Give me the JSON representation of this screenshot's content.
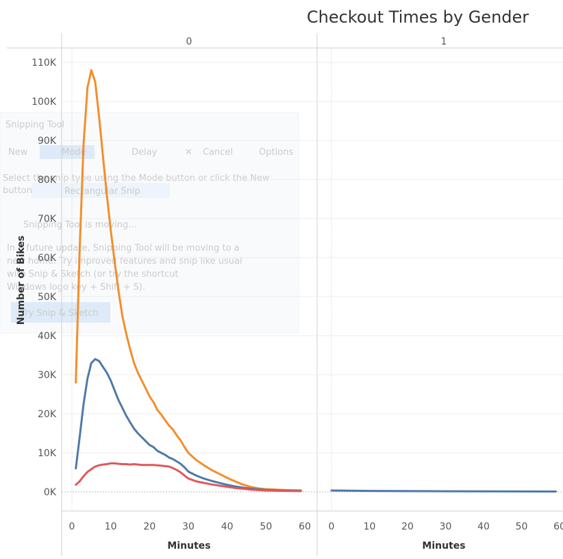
{
  "chart_data": {
    "type": "line",
    "title": "Checkout Times by Gender",
    "xlabel": "Minutes",
    "ylabel": "Number of Bikes",
    "ylim": [
      0,
      110000
    ],
    "xlim": [
      0,
      60
    ],
    "grid": true,
    "y_ticks": [
      "0K",
      "10K",
      "20K",
      "30K",
      "40K",
      "50K",
      "60K",
      "70K",
      "80K",
      "90K",
      "100K",
      "110K"
    ],
    "x_ticks": [
      "0",
      "10",
      "20",
      "30",
      "40",
      "50",
      "60"
    ],
    "facets": [
      {
        "label": "0",
        "series": [
          {
            "color": "#f28e2b",
            "x": [
              1,
              2,
              3,
              4,
              5,
              6,
              7,
              8,
              9,
              10,
              11,
              12,
              13,
              14,
              15,
              16,
              17,
              18,
              19,
              20,
              21,
              22,
              23,
              24,
              25,
              26,
              27,
              28,
              29,
              30,
              32,
              34,
              36,
              38,
              40,
              42,
              44,
              46,
              48,
              50,
              55,
              59
            ],
            "y": [
              28000,
              62000,
              89000,
              103500,
              108000,
              105000,
              96000,
              86000,
              76000,
              67000,
              59000,
              51500,
              45000,
              40500,
              36500,
              33000,
              30500,
              28500,
              26500,
              24500,
              23000,
              21000,
              19800,
              18400,
              17000,
              16000,
              14500,
              13200,
              11500,
              10000,
              8200,
              6800,
              5600,
              4600,
              3600,
              2700,
              1900,
              1300,
              900,
              700,
              450,
              350
            ]
          },
          {
            "color": "#4e79a7",
            "x": [
              1,
              2,
              3,
              4,
              5,
              6,
              7,
              8,
              9,
              10,
              11,
              12,
              13,
              14,
              15,
              16,
              17,
              18,
              19,
              20,
              21,
              22,
              23,
              24,
              25,
              26,
              27,
              28,
              29,
              30,
              32,
              34,
              36,
              38,
              40,
              42,
              44,
              46,
              48,
              50,
              55,
              59
            ],
            "y": [
              6000,
              14000,
              22500,
              29000,
              33000,
              34000,
              33500,
              32000,
              30500,
              28500,
              26000,
              23500,
              21500,
              19500,
              17800,
              16200,
              15000,
              14000,
              13000,
              12000,
              11500,
              10500,
              10000,
              9500,
              8800,
              8400,
              7800,
              7200,
              6300,
              5200,
              4200,
              3400,
              2800,
              2300,
              1800,
              1400,
              1100,
              850,
              650,
              500,
              350,
              300
            ]
          },
          {
            "color": "#e15759",
            "x": [
              1,
              2,
              3,
              4,
              5,
              6,
              7,
              8,
              9,
              10,
              11,
              12,
              13,
              14,
              15,
              16,
              17,
              18,
              19,
              20,
              21,
              22,
              23,
              24,
              25,
              26,
              27,
              28,
              29,
              30,
              32,
              34,
              36,
              38,
              40,
              42,
              44,
              46,
              48,
              50,
              55,
              59
            ],
            "y": [
              1800,
              2700,
              4000,
              5100,
              5800,
              6500,
              6800,
              7000,
              7100,
              7300,
              7300,
              7200,
              7100,
              7100,
              7000,
              7100,
              7000,
              6900,
              6900,
              6900,
              6900,
              6800,
              6700,
              6600,
              6500,
              6100,
              5600,
              5000,
              4200,
              3400,
              2700,
              2300,
              1900,
              1600,
              1300,
              1000,
              800,
              600,
              450,
              350,
              250,
              200
            ]
          }
        ]
      },
      {
        "label": "1",
        "series": [
          {
            "color": "#4e79a7",
            "x": [
              0,
              10,
              20,
              30,
              40,
              50,
              59
            ],
            "y": [
              350,
              250,
              200,
              150,
              120,
              100,
              80
            ]
          }
        ]
      }
    ]
  },
  "overlay": {
    "window_title": "Snipping Tool",
    "new_label": "New",
    "mode_label": "Mode",
    "delay_label": "Delay",
    "cancel_label": "Cancel",
    "options_label": "Options",
    "instruction_1": "Select the snip type using the Mode button or click the New",
    "instruction_2": "button.",
    "snip_type": "Rectangular Snip",
    "moving_heading": "Snipping Tool is moving...",
    "body_1": "In a future update, Snipping Tool will be moving to a",
    "body_2": "new home. Try improved features and snip like usual",
    "body_3": "with Snip & Sketch (or try the shortcut",
    "body_4": "Windows logo key + Shift + S).",
    "try_button": "Try Snip & Sketch"
  }
}
